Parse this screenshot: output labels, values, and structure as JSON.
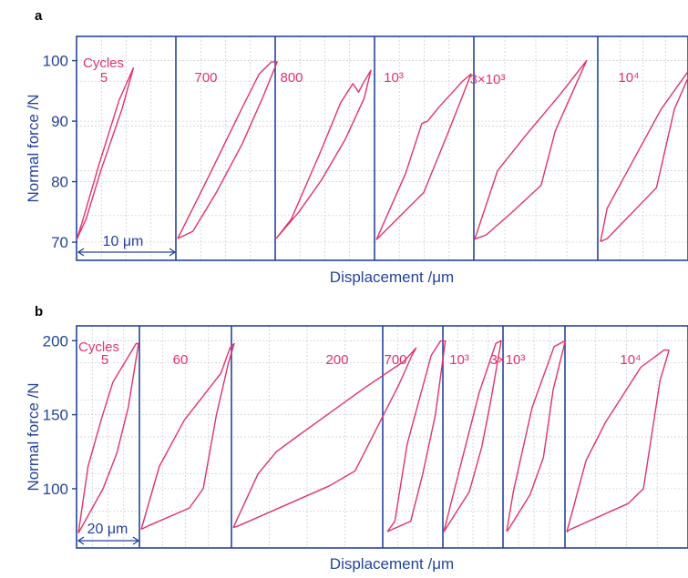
{
  "chart_data": [
    {
      "panel_label": "a",
      "type": "line",
      "xlabel": "Displacement /μm",
      "ylabel": "Normal force /N",
      "ylim": [
        67,
        104
      ],
      "yticks": [
        70,
        80,
        90,
        100
      ],
      "grid": true,
      "scale_bar": "10 μm",
      "cycles_label": "Cycles",
      "series": [
        {
          "name": "5",
          "points": [
            [
              0,
              70.4
            ],
            [
              0.6,
              73.3
            ],
            [
              2.4,
              83.0
            ],
            [
              4.5,
              93.5
            ],
            [
              6.0,
              98.8
            ],
            [
              4.8,
              92.0
            ],
            [
              2.6,
              82.0
            ],
            [
              1.0,
              73.8
            ],
            [
              0,
              70.4
            ]
          ]
        },
        {
          "name": "700",
          "points": [
            [
              0,
              70.6
            ],
            [
              3.0,
              80.0
            ],
            [
              6.8,
              92.2
            ],
            [
              8.6,
              97.8
            ],
            [
              9.9,
              99.8
            ],
            [
              10.5,
              99.8
            ],
            [
              9.0,
              94.0
            ],
            [
              6.8,
              86.2
            ],
            [
              4.0,
              78.0
            ],
            [
              1.6,
              71.8
            ],
            [
              0,
              70.6
            ]
          ]
        },
        {
          "name": "800",
          "points": [
            [
              0,
              70.6
            ],
            [
              1.6,
              73.8
            ],
            [
              4.6,
              84.6
            ],
            [
              6.8,
              93.0
            ],
            [
              8.1,
              96.2
            ],
            [
              8.7,
              94.8
            ],
            [
              9.2,
              96.3
            ],
            [
              10.0,
              98.4
            ],
            [
              9.3,
              93.8
            ],
            [
              7.3,
              87.0
            ],
            [
              4.8,
              80.3
            ],
            [
              2.4,
              75.0
            ],
            [
              0,
              70.6
            ]
          ]
        },
        {
          "name": "10³",
          "points": [
            [
              0,
              70.4
            ],
            [
              3.1,
              81.4
            ],
            [
              4.8,
              89.6
            ],
            [
              5.4,
              90.0
            ],
            [
              6.6,
              92.3
            ],
            [
              9.1,
              96.6
            ],
            [
              10.0,
              97.8
            ],
            [
              8.9,
              93.4
            ],
            [
              7.6,
              88.2
            ],
            [
              5.0,
              78.2
            ],
            [
              0,
              70.4
            ]
          ]
        },
        {
          "name": "3×10³",
          "points": [
            [
              0,
              70.5
            ],
            [
              2.4,
              81.8
            ],
            [
              5.4,
              87.7
            ],
            [
              9.0,
              94.4
            ],
            [
              11.8,
              100.0
            ],
            [
              8.5,
              88.4
            ],
            [
              7.0,
              79.4
            ],
            [
              3.9,
              74.9
            ],
            [
              1.2,
              71.2
            ],
            [
              0,
              70.5
            ]
          ]
        },
        {
          "name": "10⁴",
          "points": [
            [
              0,
              70.1
            ],
            [
              0.7,
              75.6
            ],
            [
              3.1,
              82.5
            ],
            [
              6.4,
              92.0
            ],
            [
              10.0,
              99.9
            ],
            [
              7.8,
              92.0
            ],
            [
              5.9,
              79.0
            ],
            [
              0.7,
              70.6
            ],
            [
              0,
              70.1
            ]
          ]
        }
      ]
    },
    {
      "panel_label": "b",
      "type": "line",
      "xlabel": "Displacement /μm",
      "ylabel": "Normal force /N",
      "ylim": [
        60,
        210
      ],
      "yticks": [
        100,
        150,
        200
      ],
      "grid": true,
      "scale_bar": "20 μm",
      "cycles_label": "Cycles",
      "series": [
        {
          "name": "5",
          "points": [
            [
              0,
              70.0
            ],
            [
              3.2,
              115.0
            ],
            [
              7.8,
              148.0
            ],
            [
              11.5,
              172.0
            ],
            [
              19.2,
              198.0
            ],
            [
              20.0,
              198.0
            ],
            [
              16.6,
              155.0
            ],
            [
              12.8,
              124.0
            ],
            [
              8.2,
              100.0
            ],
            [
              0,
              70.0
            ]
          ]
        },
        {
          "name": "60",
          "points": [
            [
              0,
              72.6
            ],
            [
              6.0,
              115.0
            ],
            [
              14.2,
              146.0
            ],
            [
              26.5,
              178.0
            ],
            [
              29.5,
              195.0
            ],
            [
              30.9,
              198.0
            ],
            [
              29.0,
              185.0
            ],
            [
              25.0,
              150.0
            ],
            [
              20.6,
              100.0
            ],
            [
              16.0,
              87.0
            ],
            [
              2.6,
              75.2
            ],
            [
              0,
              72.6
            ]
          ]
        },
        {
          "name": "200",
          "points": [
            [
              0,
              73.8
            ],
            [
              8.2,
              110.0
            ],
            [
              14.3,
              125.0
            ],
            [
              21.0,
              135.0
            ],
            [
              43.6,
              168.0
            ],
            [
              56.7,
              186.0
            ],
            [
              60.8,
              195.0
            ],
            [
              59.4,
              190.0
            ],
            [
              55.0,
              170.0
            ],
            [
              40.5,
              112.0
            ],
            [
              32.0,
              102.0
            ],
            [
              1.3,
              74.6
            ],
            [
              0,
              73.8
            ]
          ]
        },
        {
          "name": "700",
          "points": [
            [
              0,
              71.0
            ],
            [
              2.5,
              78.0
            ],
            [
              6.6,
              130.0
            ],
            [
              14.6,
              190.0
            ],
            [
              17.7,
              199.8
            ],
            [
              19.3,
              199.8
            ],
            [
              16.0,
              150.0
            ],
            [
              11.8,
              110.0
            ],
            [
              7.8,
              78.0
            ],
            [
              0.6,
              71.6
            ],
            [
              0,
              71.0
            ]
          ]
        },
        {
          "name": "10³",
          "points": [
            [
              0,
              70.9
            ],
            [
              5.5,
              115.0
            ],
            [
              11.8,
              165.0
            ],
            [
              17.3,
              198.0
            ],
            [
              19.1,
              200.0
            ],
            [
              15.7,
              160.0
            ],
            [
              12.6,
              128.0
            ],
            [
              8.5,
              98.0
            ],
            [
              0,
              70.9
            ]
          ]
        },
        {
          "name": "3×10³",
          "points": [
            [
              0,
              71.1
            ],
            [
              2.2,
              98.0
            ],
            [
              8.5,
              155.0
            ],
            [
              15.8,
              196.0
            ],
            [
              19.5,
              200.0
            ],
            [
              15.5,
              167.0
            ],
            [
              12.2,
              121.0
            ],
            [
              7.8,
              96.0
            ],
            [
              0.5,
              72.1
            ],
            [
              0,
              71.1
            ]
          ]
        },
        {
          "name": "10⁴",
          "points": [
            [
              0,
              70.8
            ],
            [
              6.4,
              119.0
            ],
            [
              12.9,
              145.0
            ],
            [
              24.6,
              182.0
            ],
            [
              32.4,
              193.8
            ],
            [
              34.0,
              193.5
            ],
            [
              31.0,
              173.0
            ],
            [
              25.5,
              100.0
            ],
            [
              20.4,
              90.0
            ],
            [
              0.9,
              72.3
            ],
            [
              0,
              70.8
            ]
          ]
        }
      ]
    }
  ]
}
